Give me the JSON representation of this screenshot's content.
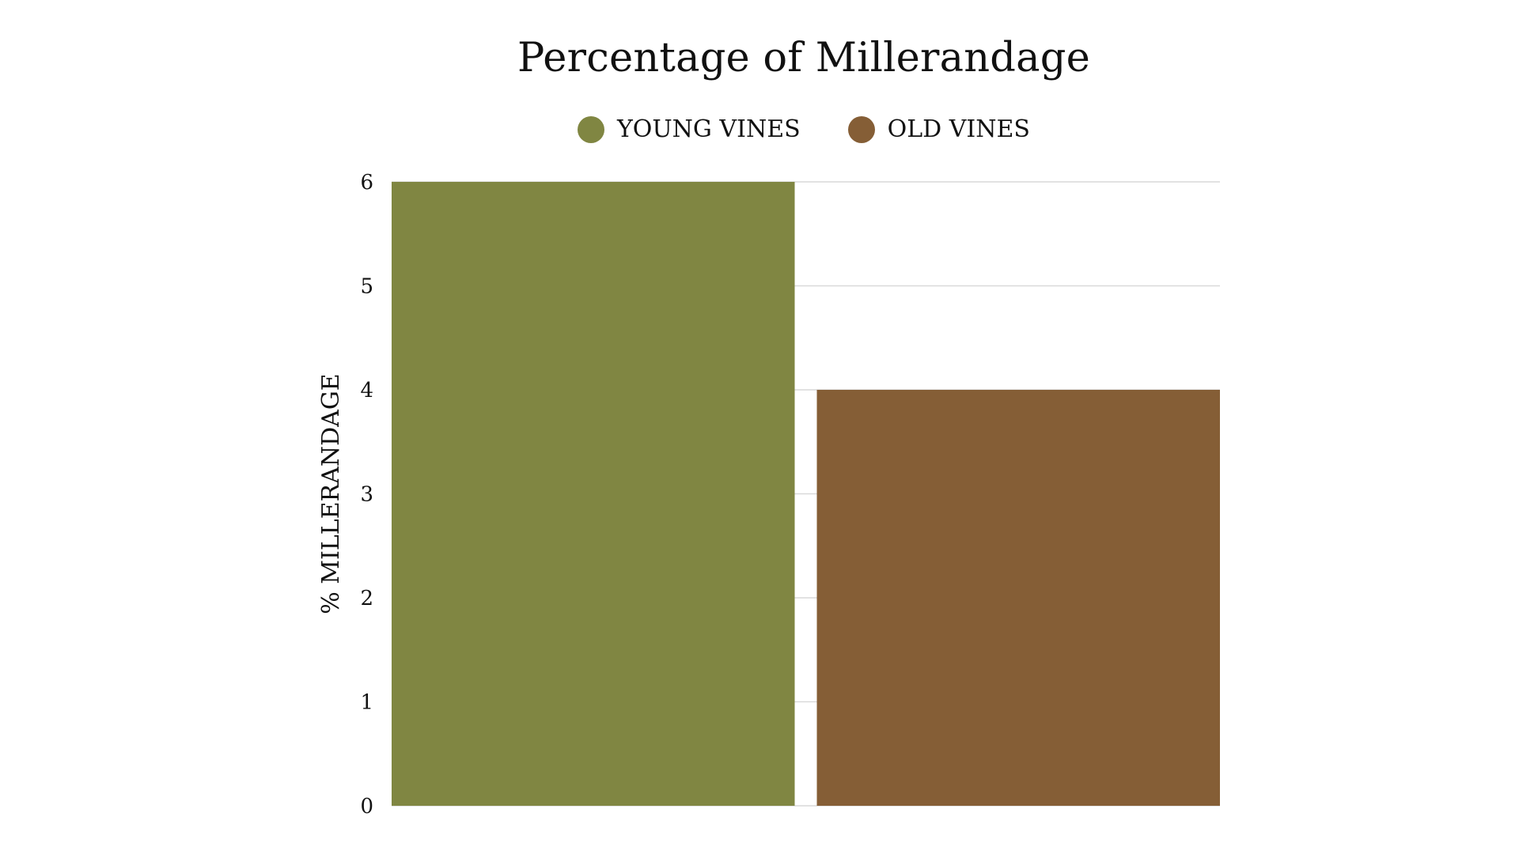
{
  "chart_data": {
    "type": "bar",
    "title": "Percentage of Millerandage",
    "xlabel": "",
    "ylabel": "% MILLERANDAGE",
    "ylim": [
      0,
      6
    ],
    "yticks": [
      "0",
      "1",
      "2",
      "3",
      "4",
      "5",
      "6"
    ],
    "grid": true,
    "legend_position": "top-center",
    "series": [
      {
        "name": "YOUNG VINES",
        "values": [
          6
        ],
        "color": "#808642"
      },
      {
        "name": "OLD VINES",
        "values": [
          4
        ],
        "color": "#855e36"
      }
    ]
  }
}
